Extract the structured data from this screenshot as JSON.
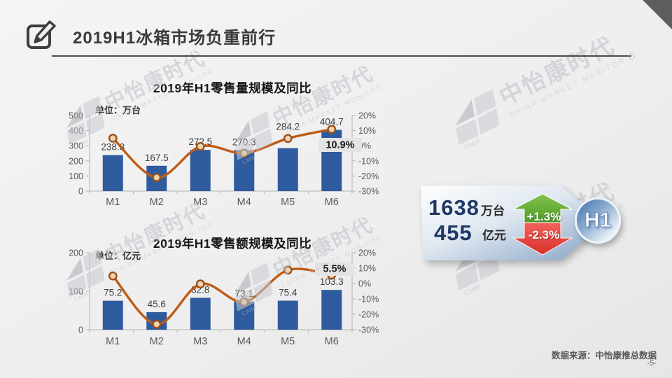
{
  "slide": {
    "title": "2019H1冰箱市场负重前行",
    "source": "数据来源：中怡康推总数据",
    "page_number": "-5-"
  },
  "watermark": {
    "brand": "中怡康时代",
    "brand_sub": "CHINA MARKET MONITOR",
    "logo_text": "CMM"
  },
  "chart_data": [
    {
      "type": "combo_bar_line",
      "title": "2019年H1零售量规模及同比",
      "unit_label": "单位：万台",
      "categories": [
        "M1",
        "M2",
        "M3",
        "M4",
        "M5",
        "M6"
      ],
      "bar_series": {
        "name": "零售量",
        "unit": "万台",
        "values": [
          238.3,
          167.5,
          272.5,
          270.3,
          284.2,
          404.7
        ]
      },
      "line_series": {
        "name": "同比增速",
        "values_pct_est": [
          5.0,
          -21.0,
          -0.5,
          -4.9,
          4.8,
          10.9
        ],
        "labeled_point": {
          "category": "M6",
          "label": "10.9%"
        }
      },
      "left_axis": {
        "ticks": [
          500,
          400,
          300,
          200,
          100,
          0
        ],
        "max": 500
      },
      "right_axis": {
        "ticks": [
          "20%",
          "10%",
          "0%",
          "-10%",
          "-20%",
          "-30%"
        ],
        "max_pct": 20,
        "min_pct": -30
      },
      "grid": "off",
      "legend": "none"
    },
    {
      "type": "combo_bar_line",
      "title": "2019年H1零售额规模及同比",
      "unit_label": "单位：亿元",
      "categories": [
        "M1",
        "M2",
        "M3",
        "M4",
        "M5",
        "M6"
      ],
      "bar_series": {
        "name": "零售额",
        "unit": "亿元",
        "values": [
          75.2,
          45.6,
          82.8,
          73.1,
          75.4,
          103.3
        ]
      },
      "line_series": {
        "name": "同比增速",
        "values_pct_est": [
          4.9,
          -26.5,
          -0.3,
          -11.9,
          8.7,
          5.5
        ],
        "labeled_point": {
          "category": "M6",
          "label": "5.5%"
        }
      },
      "left_axis": {
        "ticks": [
          200,
          100,
          0
        ],
        "max": 200
      },
      "right_axis": {
        "ticks": [
          "20%",
          "10%",
          "0%",
          "-10%",
          "-20%",
          "-30%"
        ],
        "max_pct": 20,
        "min_pct": -30
      },
      "grid": "off",
      "legend": "none"
    }
  ],
  "summary_badge": {
    "period": "H1",
    "volume": {
      "value": "1638",
      "unit": "万台",
      "yoy": "+1.3%",
      "direction": "up"
    },
    "amount": {
      "value": "455",
      "unit": "亿元",
      "yoy": "-2.3%",
      "direction": "down"
    }
  },
  "colors": {
    "bar": "#2e5b9e",
    "line": "#bf5b16",
    "marker_fill": "#f0d2ae",
    "marker_stroke": "#99511b",
    "up_arrow_top": "#83c24a",
    "up_arrow_bottom": "#4f9c28",
    "down_arrow_top": "#f2615c",
    "down_arrow_bottom": "#d92f2a",
    "badge_number": "#1f3864",
    "banner_blue": "#7f9ec2",
    "h1_circle_blue": "#4a7ab5",
    "highlight_box": "#e4e4e4"
  }
}
